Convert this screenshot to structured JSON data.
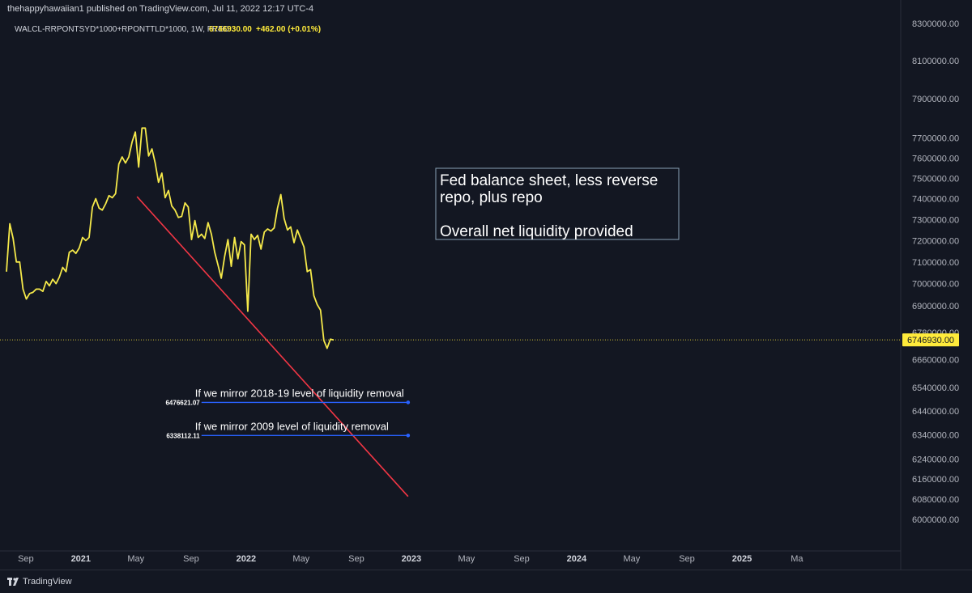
{
  "header": {
    "published_line": "thehappyhawaiian1 published on TradingView.com, Jul 11, 2022 12:17 UTC-4"
  },
  "legend": {
    "symbol": "WALCL-RRPONTSYD*1000+RPONTTLD*1000, 1W, FRED",
    "last_value": "6746930.00",
    "change": "+462.00 (+0.01%)"
  },
  "footer": {
    "brand": "TradingView"
  },
  "colors": {
    "background": "#131722",
    "series": "#f5e94a",
    "trendline": "#f23645",
    "hline": "#2962ff",
    "price_tag": "#ffeb3b",
    "axis_text": "#b2b5be"
  },
  "chart_data": {
    "type": "line",
    "title": "",
    "xlabel": "",
    "ylabel": "",
    "series": [
      {
        "values": [
          [
            2020.55,
            7055000
          ],
          [
            2020.57,
            7280000
          ],
          [
            2020.59,
            7210000
          ],
          [
            2020.61,
            7100000
          ],
          [
            2020.63,
            7100000
          ],
          [
            2020.65,
            6975000
          ],
          [
            2020.67,
            6930000
          ],
          [
            2020.69,
            6955000
          ],
          [
            2020.71,
            6960000
          ],
          [
            2020.73,
            6975000
          ],
          [
            2020.75,
            6975000
          ],
          [
            2020.77,
            6965000
          ],
          [
            2020.79,
            7010000
          ],
          [
            2020.81,
            6990000
          ],
          [
            2020.83,
            7020000
          ],
          [
            2020.85,
            7000000
          ],
          [
            2020.87,
            7030000
          ],
          [
            2020.89,
            7075000
          ],
          [
            2020.91,
            7055000
          ],
          [
            2020.93,
            7145000
          ],
          [
            2020.95,
            7155000
          ],
          [
            2020.97,
            7140000
          ],
          [
            2020.99,
            7165000
          ],
          [
            2021.01,
            7215000
          ],
          [
            2021.03,
            7200000
          ],
          [
            2021.05,
            7215000
          ],
          [
            2021.07,
            7360000
          ],
          [
            2021.09,
            7400000
          ],
          [
            2021.11,
            7355000
          ],
          [
            2021.13,
            7345000
          ],
          [
            2021.15,
            7375000
          ],
          [
            2021.17,
            7415000
          ],
          [
            2021.19,
            7405000
          ],
          [
            2021.21,
            7425000
          ],
          [
            2021.23,
            7570000
          ],
          [
            2021.25,
            7605000
          ],
          [
            2021.27,
            7575000
          ],
          [
            2021.29,
            7605000
          ],
          [
            2021.31,
            7680000
          ],
          [
            2021.33,
            7730000
          ],
          [
            2021.35,
            7555000
          ],
          [
            2021.37,
            7750000
          ],
          [
            2021.39,
            7750000
          ],
          [
            2021.41,
            7610000
          ],
          [
            2021.43,
            7645000
          ],
          [
            2021.45,
            7575000
          ],
          [
            2021.47,
            7480000
          ],
          [
            2021.49,
            7525000
          ],
          [
            2021.51,
            7405000
          ],
          [
            2021.53,
            7440000
          ],
          [
            2021.55,
            7365000
          ],
          [
            2021.57,
            7345000
          ],
          [
            2021.59,
            7310000
          ],
          [
            2021.61,
            7315000
          ],
          [
            2021.63,
            7380000
          ],
          [
            2021.65,
            7360000
          ],
          [
            2021.67,
            7205000
          ],
          [
            2021.69,
            7295000
          ],
          [
            2021.71,
            7215000
          ],
          [
            2021.73,
            7230000
          ],
          [
            2021.75,
            7210000
          ],
          [
            2021.77,
            7285000
          ],
          [
            2021.79,
            7230000
          ],
          [
            2021.81,
            7145000
          ],
          [
            2021.83,
            7085000
          ],
          [
            2021.85,
            7025000
          ],
          [
            2021.87,
            7125000
          ],
          [
            2021.89,
            7205000
          ],
          [
            2021.91,
            7080000
          ],
          [
            2021.93,
            7215000
          ],
          [
            2021.95,
            7115000
          ],
          [
            2021.97,
            7195000
          ],
          [
            2021.99,
            7180000
          ],
          [
            2022.01,
            6875000
          ],
          [
            2022.03,
            7230000
          ],
          [
            2022.05,
            7205000
          ],
          [
            2022.07,
            7225000
          ],
          [
            2022.09,
            7160000
          ],
          [
            2022.11,
            7240000
          ],
          [
            2022.13,
            7255000
          ],
          [
            2022.15,
            7245000
          ],
          [
            2022.17,
            7260000
          ],
          [
            2022.19,
            7355000
          ],
          [
            2022.21,
            7420000
          ],
          [
            2022.23,
            7305000
          ],
          [
            2022.25,
            7250000
          ],
          [
            2022.27,
            7265000
          ],
          [
            2022.29,
            7190000
          ],
          [
            2022.31,
            7250000
          ],
          [
            2022.33,
            7210000
          ],
          [
            2022.35,
            7170000
          ],
          [
            2022.37,
            7055000
          ],
          [
            2022.39,
            7065000
          ],
          [
            2022.41,
            6945000
          ],
          [
            2022.43,
            6905000
          ],
          [
            2022.45,
            6880000
          ],
          [
            2022.47,
            6745000
          ],
          [
            2022.49,
            6710000
          ],
          [
            2022.51,
            6750000
          ],
          [
            2022.53,
            6746930
          ]
        ]
      }
    ],
    "last_value": 6746930,
    "annotation": "Fed balance sheet, less reverse repo, plus repo\n\nOverall net liquidity provided",
    "trendline": {
      "from": [
        2021.34,
        7410000
      ],
      "to": [
        2022.98,
        6090000
      ]
    },
    "price_levels": [
      {
        "value": 6476621.07,
        "value_label": "6476621.07",
        "text": "If we mirror 2018-19 level of liquidity removal",
        "x_from": 2021.73,
        "x_to": 2022.98
      },
      {
        "value": 6338112.11,
        "value_label": "6338112.11",
        "text": "If we mirror 2009 level of liquidity removal",
        "x_from": 2021.73,
        "x_to": 2022.98
      }
    ],
    "y_scale": "log",
    "ylim": [
      5880000,
      8330000
    ],
    "xlim": [
      2020.55,
      2026.0
    ],
    "y_ticks": [
      {
        "value": 8300000,
        "label": "8300000.00"
      },
      {
        "value": 8100000,
        "label": "8100000.00"
      },
      {
        "value": 7900000,
        "label": "7900000.00"
      },
      {
        "value": 7700000,
        "label": "7700000.00"
      },
      {
        "value": 7600000,
        "label": "7600000.00"
      },
      {
        "value": 7500000,
        "label": "7500000.00"
      },
      {
        "value": 7400000,
        "label": "7400000.00"
      },
      {
        "value": 7300000,
        "label": "7300000.00"
      },
      {
        "value": 7200000,
        "label": "7200000.00"
      },
      {
        "value": 7100000,
        "label": "7100000.00"
      },
      {
        "value": 7000000,
        "label": "7000000.00"
      },
      {
        "value": 6900000,
        "label": "6900000.00"
      },
      {
        "value": 6780000,
        "label": "6780000.00"
      },
      {
        "value": 6660000,
        "label": "6660000.00"
      },
      {
        "value": 6540000,
        "label": "6540000.00"
      },
      {
        "value": 6440000,
        "label": "6440000.00"
      },
      {
        "value": 6340000,
        "label": "6340000.00"
      },
      {
        "value": 6240000,
        "label": "6240000.00"
      },
      {
        "value": 6160000,
        "label": "6160000.00"
      },
      {
        "value": 6080000,
        "label": "6080000.00"
      },
      {
        "value": 6000000,
        "label": "6000000.00"
      }
    ],
    "x_ticks": [
      {
        "value": 2020.667,
        "label": "Sep",
        "bold": false
      },
      {
        "value": 2021.0,
        "label": "2021",
        "bold": true
      },
      {
        "value": 2021.333,
        "label": "May",
        "bold": false
      },
      {
        "value": 2021.667,
        "label": "Sep",
        "bold": false
      },
      {
        "value": 2022.0,
        "label": "2022",
        "bold": true
      },
      {
        "value": 2022.333,
        "label": "May",
        "bold": false
      },
      {
        "value": 2022.667,
        "label": "Sep",
        "bold": false
      },
      {
        "value": 2023.0,
        "label": "2023",
        "bold": true
      },
      {
        "value": 2023.333,
        "label": "May",
        "bold": false
      },
      {
        "value": 2023.667,
        "label": "Sep",
        "bold": false
      },
      {
        "value": 2024.0,
        "label": "2024",
        "bold": true
      },
      {
        "value": 2024.333,
        "label": "May",
        "bold": false
      },
      {
        "value": 2024.667,
        "label": "Sep",
        "bold": false
      },
      {
        "value": 2025.0,
        "label": "2025",
        "bold": true
      },
      {
        "value": 2025.333,
        "label": "Ma",
        "bold": false
      }
    ],
    "grid": false
  }
}
